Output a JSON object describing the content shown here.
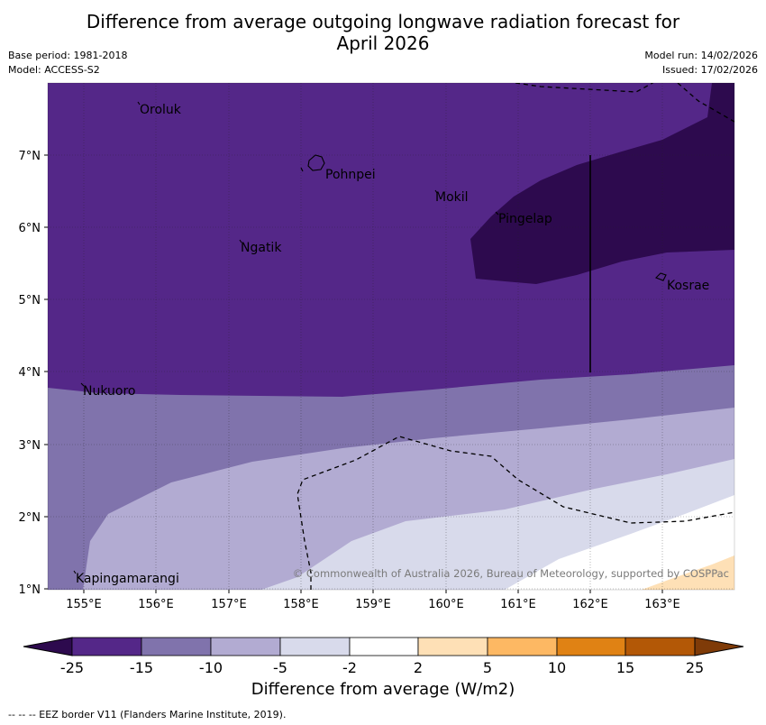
{
  "title_line1": "Difference from average outgoing longwave radiation forecast for",
  "title_line2": "April 2026",
  "base_period": "Base period: 1981-2018",
  "model": "Model: ACCESS-S2",
  "model_run": "Model run: 14/02/2026",
  "issued": "Issued: 17/02/2026",
  "copyright": "© Commonwealth of Australia 2026, Bureau of Meteorology, supported by COSPPac",
  "x_ticks": [
    "155°E",
    "156°E",
    "157°E",
    "158°E",
    "159°E",
    "160°E",
    "161°E",
    "162°E",
    "163°E"
  ],
  "y_ticks": [
    "1°N",
    "2°N",
    "3°N",
    "4°N",
    "5°N",
    "6°N",
    "7°N"
  ],
  "places": {
    "oroluk": "Oroluk",
    "pohnpei": "Pohnpei",
    "mokil": "Mokil",
    "pingelap": "Pingelap",
    "ngatik": "Ngatik",
    "kosrae": "Kosrae",
    "nukuoro": "Nukuoro",
    "kapingamarangi": "Kapingamarangi"
  },
  "colorbar": {
    "labels": [
      "-25",
      "-15",
      "-10",
      "-5",
      "-2",
      "2",
      "5",
      "10",
      "15",
      "25"
    ],
    "colors": [
      "#2d0a4e",
      "#542788",
      "#8073ac",
      "#b2abd2",
      "#d8daeb",
      "#ffffff",
      "#fee0b6",
      "#fdb863",
      "#e08214",
      "#b35806",
      "#7f3b08"
    ],
    "title": "Difference from average (W/m2)"
  },
  "footnote": "--  --  -- EEZ border V11 (Flanders Marine Institute, 2019)."
}
